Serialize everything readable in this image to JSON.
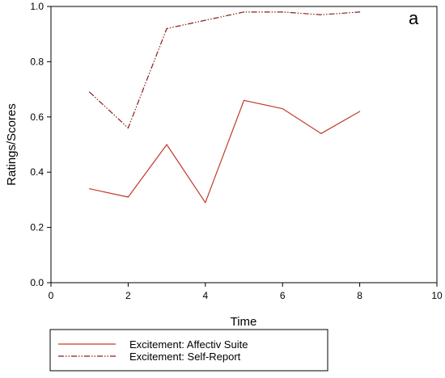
{
  "chart_data": {
    "type": "line",
    "panel_label": "a",
    "xlabel": "Time",
    "ylabel": "Ratings/Scores",
    "xlim": [
      0,
      10
    ],
    "ylim": [
      0.0,
      1.0
    ],
    "x_ticks": [
      "0",
      "2",
      "4",
      "6",
      "8",
      "10"
    ],
    "y_ticks": [
      "0.0",
      "0.2",
      "0.4",
      "0.6",
      "0.8",
      "1.0"
    ],
    "grid": false,
    "legend_position": "bottom",
    "series": [
      {
        "name": "Excitement: Affectiv Suite",
        "style": "solid",
        "color": "#c0392b",
        "x": [
          1,
          2,
          3,
          4,
          5,
          6,
          7,
          8
        ],
        "y": [
          0.34,
          0.31,
          0.5,
          0.29,
          0.66,
          0.63,
          0.54,
          0.62
        ]
      },
      {
        "name": "Excitement: Self-Report",
        "style": "dash-dot-dot",
        "color": "#8b1a1a",
        "x": [
          1,
          2,
          3,
          4,
          5,
          6,
          7,
          8
        ],
        "y": [
          0.69,
          0.56,
          0.92,
          0.95,
          0.98,
          0.98,
          0.97,
          0.98
        ]
      }
    ]
  }
}
